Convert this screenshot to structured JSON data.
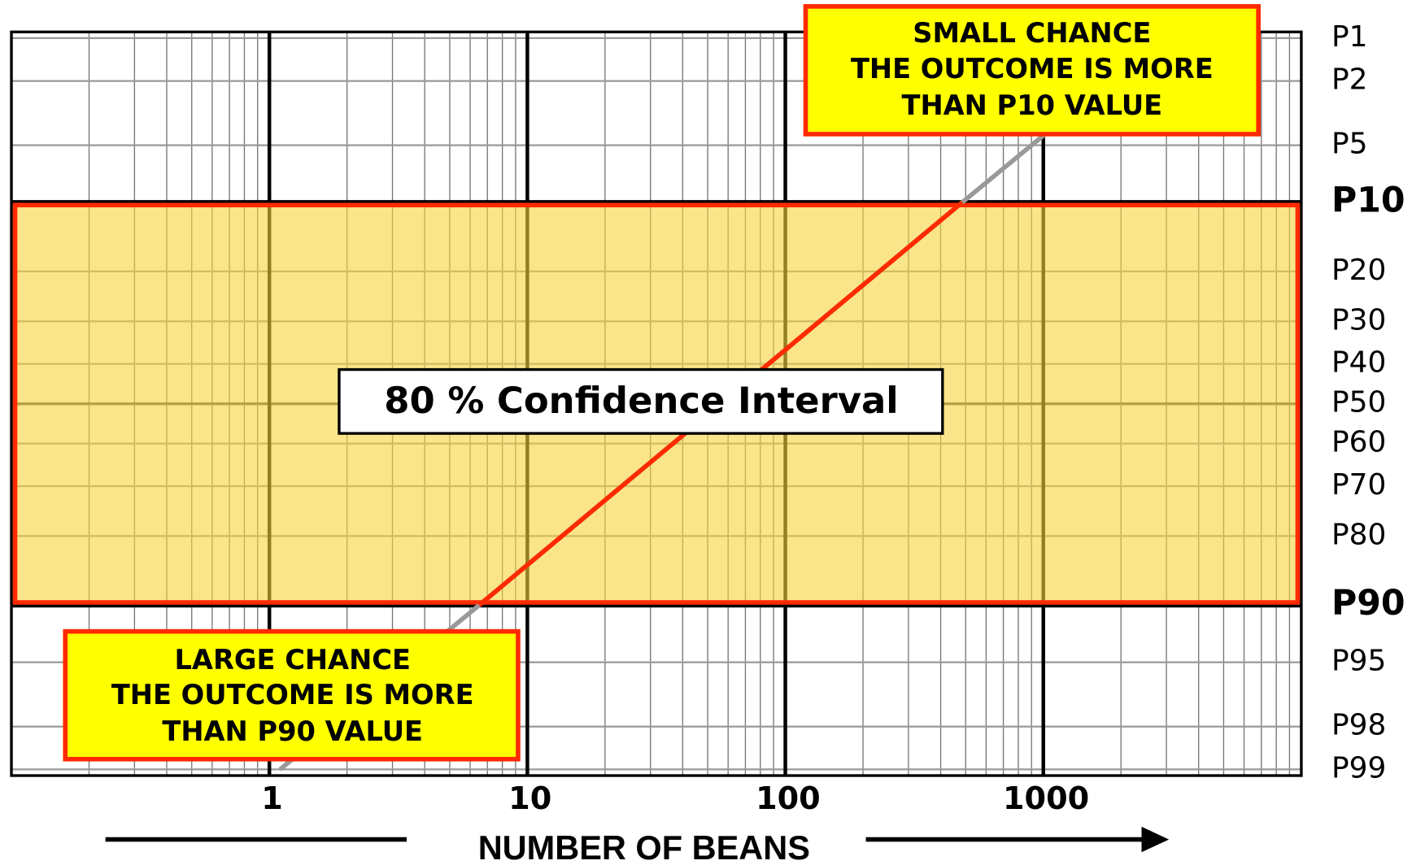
{
  "chart_data": {
    "type": "line",
    "xlabel": "NUMBER OF BEANS",
    "xscale": "log",
    "yscale": "probability",
    "xlim": [
      0.1,
      10000
    ],
    "xticks": [
      1,
      10,
      100,
      1000
    ],
    "ylim": [
      0.9,
      99.1
    ],
    "yticks": [
      {
        "value": 1,
        "label": "P1"
      },
      {
        "value": 2,
        "label": "P2"
      },
      {
        "value": 5,
        "label": "P5"
      },
      {
        "value": 10,
        "label": "P10"
      },
      {
        "value": 20,
        "label": "P20"
      },
      {
        "value": 30,
        "label": "P30"
      },
      {
        "value": 40,
        "label": "P40"
      },
      {
        "value": 50,
        "label": "P50"
      },
      {
        "value": 60,
        "label": "P60"
      },
      {
        "value": 70,
        "label": "P70"
      },
      {
        "value": 80,
        "label": "P80"
      },
      {
        "value": 90,
        "label": "P90"
      },
      {
        "value": 95,
        "label": "P95"
      },
      {
        "value": 98,
        "label": "P98"
      },
      {
        "value": 99,
        "label": "P99"
      }
    ],
    "grid": true,
    "band": {
      "range": [
        10,
        90
      ],
      "color": "#f8d43c",
      "edge_color": "#ff2a00",
      "label": "80 % Confidence Interval"
    },
    "series": [
      {
        "x": [
          1.1,
          6.5,
          485,
          1100
        ],
        "values": [
          99,
          90,
          10,
          3.9
        ],
        "color": "#999999",
        "band_color": "#ff2a00"
      }
    ],
    "annotations": [
      {
        "lines": [
          "SMALL CHANCE",
          "THE OUTCOME IS MORE",
          "THAN P10 VALUE"
        ]
      },
      {
        "lines": [
          "LARGE CHANCE",
          "THE OUTCOME IS MORE",
          "THAN P90 VALUE"
        ]
      }
    ]
  }
}
